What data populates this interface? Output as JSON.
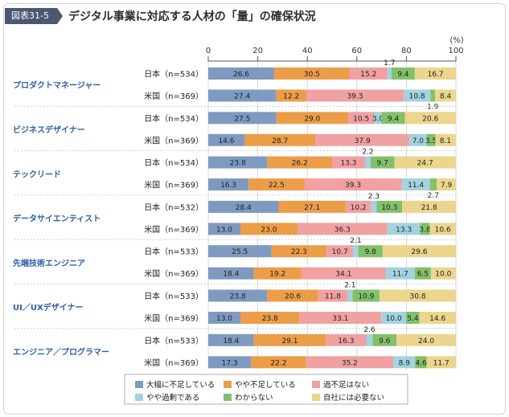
{
  "figure_label": "図表31-5",
  "title": "デジタル事業に対応する人材の「量」の確保状況",
  "chart_data": {
    "type": "bar",
    "orientation": "horizontal",
    "stacked": true,
    "unit_label": "(%)",
    "xlim": [
      0,
      100
    ],
    "ticks": [
      "0",
      "20",
      "40",
      "60",
      "80",
      "100"
    ],
    "legend_position": "bottom",
    "legend": [
      {
        "name": "大幅に不足している",
        "color": "#7f9ac0"
      },
      {
        "name": "やや不足している",
        "color": "#ec9d48"
      },
      {
        "name": "過不足はない",
        "color": "#f0a1a2"
      },
      {
        "name": "やや過剰である",
        "color": "#a2d3de"
      },
      {
        "name": "わからない",
        "color": "#82c06a"
      },
      {
        "name": "自社には必要ない",
        "color": "#ecd58c"
      }
    ],
    "groups": [
      {
        "name": "プロダクトマネージャー",
        "rows": [
          {
            "label": "日本（n=534）",
            "values": [
              26.6,
              30.5,
              15.2,
              1.7,
              9.4,
              16.7
            ],
            "labels": [
              "26.6",
              "30.5",
              "15.2",
              "1.7",
              "9.4",
              "16.7"
            ]
          },
          {
            "label": "米国（n=369）",
            "values": [
              27.4,
              12.2,
              39.3,
              10.8,
              1.9,
              8.4
            ],
            "labels": [
              "27.4",
              "12.2",
              "39.3",
              "10.8",
              "1.9",
              "8.4"
            ]
          }
        ]
      },
      {
        "name": "ビジネスデザイナー",
        "rows": [
          {
            "label": "日本（n=534）",
            "values": [
              27.5,
              29.0,
              10.5,
              3.0,
              9.4,
              20.6
            ],
            "labels": [
              "27.5",
              "29.0",
              "10.5",
              "3.0",
              "9.4",
              "20.6"
            ]
          },
          {
            "label": "米国（n=369）",
            "values": [
              14.6,
              28.7,
              37.9,
              7.0,
              3.5,
              8.1
            ],
            "labels": [
              "14.6",
              "28.7",
              "37.9",
              "7.0",
              "3.5",
              "8.1"
            ]
          }
        ]
      },
      {
        "name": "テックリード",
        "rows": [
          {
            "label": "日本（n=534）",
            "values": [
              23.8,
              26.2,
              13.3,
              2.2,
              9.7,
              24.7
            ],
            "labels": [
              "23.8",
              "26.2",
              "13.3",
              "2.2",
              "9.7",
              "24.7"
            ]
          },
          {
            "label": "米国（n=369）",
            "values": [
              16.3,
              22.5,
              39.3,
              11.4,
              2.7,
              7.9
            ],
            "labels": [
              "16.3",
              "22.5",
              "39.3",
              "11.4",
              "2.7",
              "7.9"
            ]
          }
        ]
      },
      {
        "name": "データサイエンティスト",
        "rows": [
          {
            "label": "日本（n=532）",
            "values": [
              28.4,
              27.1,
              10.2,
              2.3,
              10.3,
              21.8
            ],
            "labels": [
              "28.4",
              "27.1",
              "10.2",
              "2.3",
              "10.3",
              "21.8"
            ]
          },
          {
            "label": "米国（n=369）",
            "values": [
              13.0,
              23.0,
              36.3,
              13.3,
              3.8,
              10.6
            ],
            "labels": [
              "13.0",
              "23.0",
              "36.3",
              "13.3",
              "3.8",
              "10.6"
            ]
          }
        ]
      },
      {
        "name": "先端技術エンジニア",
        "rows": [
          {
            "label": "日本（n=533）",
            "values": [
              25.5,
              22.3,
              10.7,
              2.1,
              9.8,
              29.6
            ],
            "labels": [
              "25.5",
              "22.3",
              "10.7",
              "2.1",
              "9.8",
              "29.6"
            ]
          },
          {
            "label": "米国（n=369）",
            "values": [
              18.4,
              19.2,
              34.1,
              11.7,
              6.5,
              10.0
            ],
            "labels": [
              "18.4",
              "19.2",
              "34.1",
              "11.7",
              "6.5",
              "10.0"
            ]
          }
        ]
      },
      {
        "name": "UI／UXデザイナー",
        "rows": [
          {
            "label": "日本（n=533）",
            "values": [
              23.8,
              20.6,
              11.8,
              2.1,
              10.9,
              30.8
            ],
            "labels": [
              "23.8",
              "20.6",
              "11.8",
              "2.1",
              "10.9",
              "30.8"
            ]
          },
          {
            "label": "米国（n=369）",
            "values": [
              13.0,
              23.8,
              33.1,
              10.0,
              5.4,
              14.6
            ],
            "labels": [
              "13.0",
              "23.8",
              "33.1",
              "10.0",
              "5.4",
              "14.6"
            ]
          }
        ]
      },
      {
        "name": "エンジニア／プログラマー",
        "rows": [
          {
            "label": "日本（n=533）",
            "values": [
              18.4,
              29.1,
              16.3,
              2.6,
              9.6,
              24.0
            ],
            "labels": [
              "18.4",
              "29.1",
              "16.3",
              "2.6",
              "9.6",
              "24.0"
            ]
          },
          {
            "label": "米国（n=369）",
            "values": [
              17.3,
              22.2,
              35.2,
              8.9,
              4.6,
              11.7
            ],
            "labels": [
              "17.3",
              "22.2",
              "35.2",
              "8.9",
              "4.6",
              "11.7"
            ]
          }
        ]
      }
    ]
  }
}
